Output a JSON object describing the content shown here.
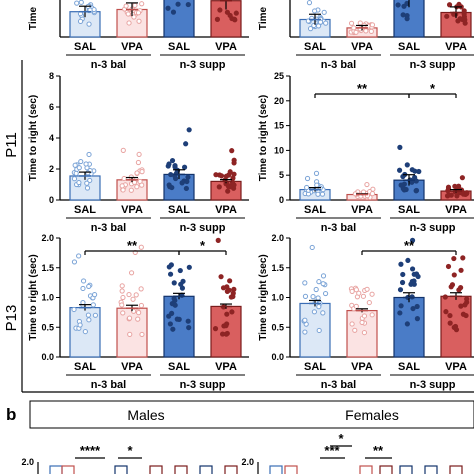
{
  "row_labels": [
    "P11",
    "P13"
  ],
  "panel_b": {
    "letter": "b",
    "sexes": [
      "Males",
      "Females"
    ],
    "sig_left": [
      "****",
      "*"
    ],
    "sig_right": [
      "***",
      "*",
      "**"
    ],
    "tick_top": "2.0"
  },
  "colors": {
    "sal_bal": "#dce8f6",
    "sal_bal_edge": "#3a6db5",
    "sal_bal_dot": "#7aa3d6",
    "vpa_bal": "#fbe3e3",
    "vpa_bal_edge": "#c0504d",
    "vpa_bal_dot": "#e8a3a1",
    "sal_supp": "#4a7cc7",
    "sal_supp_edge": "#13336b",
    "sal_supp_dot": "#1e3f78",
    "vpa_supp": "#d95f5f",
    "vpa_supp_edge": "#7a1c1c",
    "vpa_supp_dot": "#8e2424"
  },
  "chart_data": [
    {
      "id": "top-left",
      "type": "bar",
      "ylabel": "Time",
      "categories": [
        "SAL",
        "VPA",
        "SAL",
        "VPA"
      ],
      "groups": [
        "n-3 bal",
        "n-3 supp"
      ],
      "values": [
        2.3,
        2.5,
        4.9,
        3.3
      ],
      "errors": [
        0.5,
        0.6,
        1.3,
        0.8
      ],
      "ylim": [
        0,
        7
      ],
      "significance": []
    },
    {
      "id": "top-right",
      "type": "bar",
      "ylabel": "Time",
      "categories": [
        "SAL",
        "VPA",
        "SAL",
        "VPA"
      ],
      "groups": [
        "n-3 bal",
        "n-3 supp"
      ],
      "values": [
        5.0,
        2.6,
        11.5,
        7.0
      ],
      "errors": [
        1.5,
        0.7,
        3.0,
        1.6
      ],
      "ylim": [
        0,
        22
      ],
      "significance": []
    },
    {
      "id": "p11-males",
      "type": "bar",
      "ylabel": "Time to right (sec)",
      "categories": [
        "SAL",
        "VPA",
        "SAL",
        "VPA"
      ],
      "groups": [
        "n-3 bal",
        "n-3 supp"
      ],
      "values": [
        1.55,
        1.3,
        1.65,
        1.2
      ],
      "errors": [
        0.25,
        0.15,
        0.3,
        0.12
      ],
      "ylim": [
        0,
        8
      ],
      "yticks": [
        0,
        2,
        4,
        6,
        8
      ],
      "significance": []
    },
    {
      "id": "p11-females",
      "type": "bar",
      "ylabel": "Time to right (sec)",
      "categories": [
        "SAL",
        "VPA",
        "SAL",
        "VPA"
      ],
      "groups": [
        "n-3 bal",
        "n-3 supp"
      ],
      "values": [
        2.1,
        1.1,
        4.0,
        1.8
      ],
      "errors": [
        0.4,
        0.15,
        1.1,
        0.3
      ],
      "ylim": [
        0,
        25
      ],
      "yticks": [
        0,
        5,
        10,
        15,
        20,
        25
      ],
      "significance": [
        {
          "from": 0,
          "to": 2,
          "label": "**"
        },
        {
          "from": 2,
          "to": 3,
          "label": "*"
        }
      ]
    },
    {
      "id": "p13-males",
      "type": "bar",
      "ylabel": "Time to right (sec)",
      "categories": [
        "SAL",
        "VPA",
        "SAL",
        "VPA"
      ],
      "groups": [
        "n-3 bal",
        "n-3 supp"
      ],
      "values": [
        0.83,
        0.82,
        1.02,
        0.85
      ],
      "errors": [
        0.05,
        0.05,
        0.05,
        0.04
      ],
      "ylim": [
        0,
        2.0
      ],
      "yticks": [
        0,
        0.5,
        1.0,
        1.5,
        2.0
      ],
      "significance": [
        {
          "from": 0,
          "to": 2,
          "label": "**"
        },
        {
          "from": 2,
          "to": 3,
          "label": "*"
        }
      ]
    },
    {
      "id": "p13-females",
      "type": "bar",
      "ylabel": "Time to right (sec)",
      "categories": [
        "SAL",
        "VPA",
        "SAL",
        "VPA"
      ],
      "groups": [
        "n-3 bal",
        "n-3 supp"
      ],
      "values": [
        0.9,
        0.78,
        1.0,
        1.02
      ],
      "errors": [
        0.05,
        0.03,
        0.08,
        0.06
      ],
      "ylim": [
        0,
        2.0
      ],
      "yticks": [
        0,
        0.5,
        1.0,
        1.5,
        2.0
      ],
      "significance": [
        {
          "from": 1,
          "to": 3,
          "label": "**"
        }
      ]
    }
  ]
}
